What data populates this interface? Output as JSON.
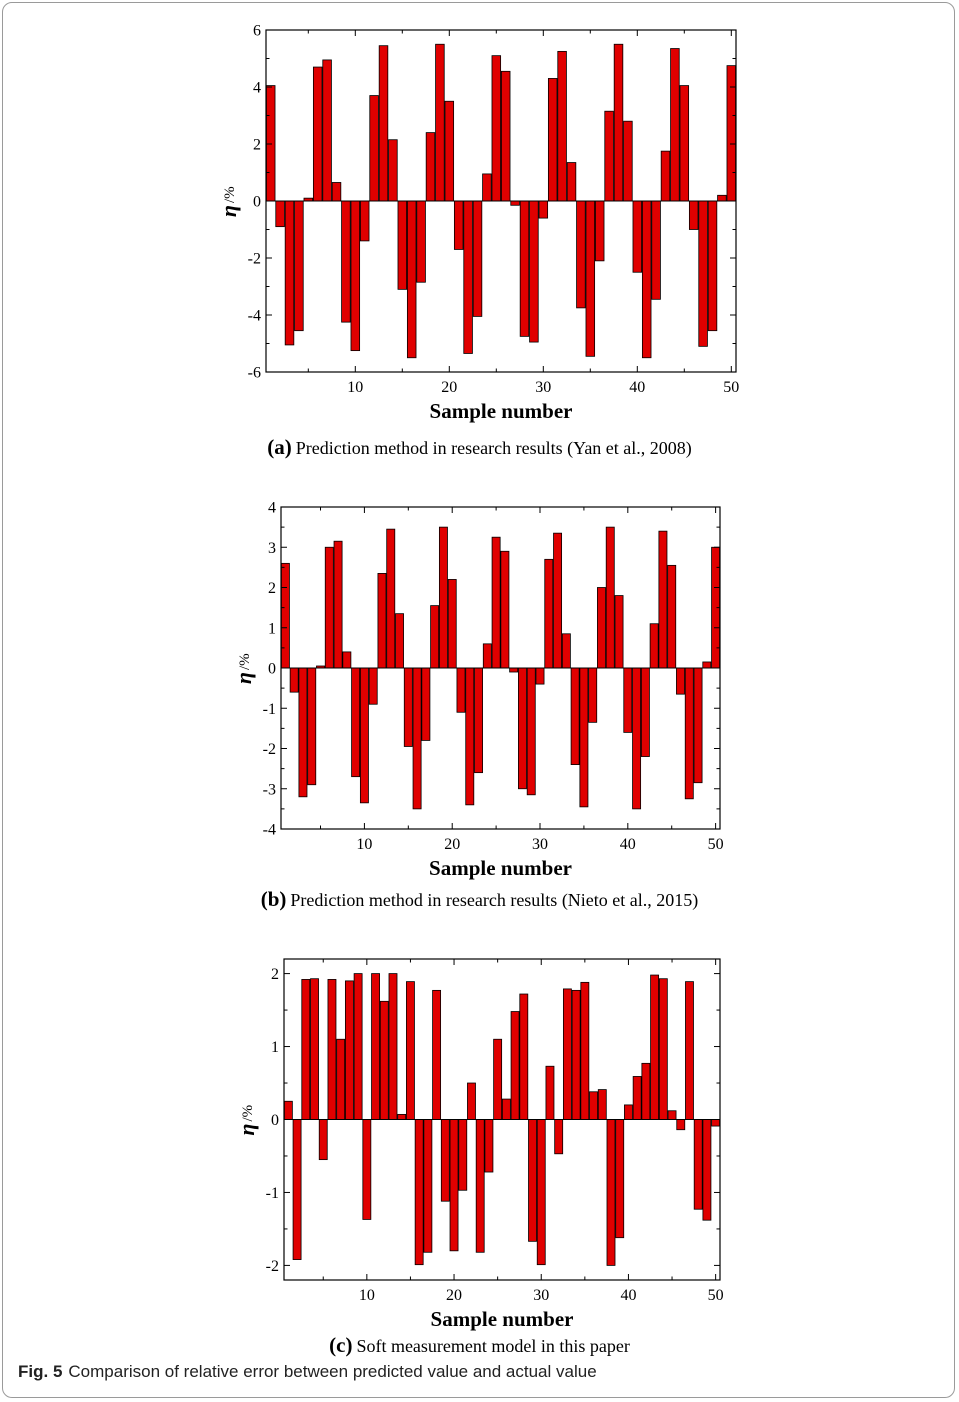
{
  "figure": {
    "label": "Fig. 5",
    "caption": "Comparison of relative error between predicted value and actual value"
  },
  "colors": {
    "bar": "#e00000",
    "stroke": "#000000"
  },
  "chart_data": [
    {
      "type": "bar",
      "panel_label": "(a)",
      "caption": "Prediction method in research results (Yan et al., 2008)",
      "xlabel": "Sample number",
      "ylabel": "η",
      "ylabel_unit": "/%",
      "xlim": [
        0.5,
        50.5
      ],
      "ylim": [
        -6,
        6
      ],
      "xticks": [
        10,
        20,
        30,
        40,
        50
      ],
      "yticks": [
        -6,
        -4,
        -2,
        0,
        2,
        4,
        6
      ],
      "ytick_labels": [
        "-6",
        "-4",
        "-2",
        "0",
        "2",
        "4",
        "6"
      ],
      "x": [
        1,
        2,
        3,
        4,
        5,
        6,
        7,
        8,
        9,
        10,
        11,
        12,
        13,
        14,
        15,
        16,
        17,
        18,
        19,
        20,
        21,
        22,
        23,
        24,
        25,
        26,
        27,
        28,
        29,
        30,
        31,
        32,
        33,
        34,
        35,
        36,
        37,
        38,
        39,
        40,
        41,
        42,
        43,
        44,
        45,
        46,
        47,
        48,
        49,
        50
      ],
      "values": [
        4.05,
        -0.9,
        -5.05,
        -4.55,
        0.1,
        4.7,
        4.95,
        0.65,
        -4.25,
        -5.25,
        -1.4,
        3.7,
        5.45,
        2.15,
        -3.1,
        -5.5,
        -2.85,
        2.4,
        5.5,
        3.5,
        -1.7,
        -5.35,
        -4.05,
        0.95,
        5.1,
        4.55,
        -0.15,
        -4.75,
        -4.95,
        -0.6,
        4.3,
        5.25,
        1.35,
        -3.75,
        -5.45,
        -2.1,
        3.15,
        5.5,
        2.8,
        -2.5,
        -5.5,
        -3.45,
        1.75,
        5.35,
        4.05,
        -1.0,
        -5.1,
        -4.55,
        0.2,
        4.75
      ]
    },
    {
      "type": "bar",
      "panel_label": "(b)",
      "caption": "Prediction method in research results (Nieto et al., 2015)",
      "xlabel": "Sample number",
      "ylabel": "η",
      "ylabel_unit": "/%",
      "xlim": [
        0.5,
        50.5
      ],
      "ylim": [
        -4,
        4
      ],
      "xticks": [
        10,
        20,
        30,
        40,
        50
      ],
      "yticks": [
        -4,
        -3,
        -2,
        -1,
        0,
        1,
        2,
        3,
        4
      ],
      "ytick_labels": [
        "-4",
        "-3",
        "-2",
        "-1",
        "0",
        "1",
        "2",
        "3",
        "4"
      ],
      "x": [
        1,
        2,
        3,
        4,
        5,
        6,
        7,
        8,
        9,
        10,
        11,
        12,
        13,
        14,
        15,
        16,
        17,
        18,
        19,
        20,
        21,
        22,
        23,
        24,
        25,
        26,
        27,
        28,
        29,
        30,
        31,
        32,
        33,
        34,
        35,
        36,
        37,
        38,
        39,
        40,
        41,
        42,
        43,
        44,
        45,
        46,
        47,
        48,
        49,
        50
      ],
      "values": [
        2.6,
        -0.6,
        -3.2,
        -2.9,
        0.05,
        3.0,
        3.15,
        0.4,
        -2.7,
        -3.35,
        -0.9,
        2.35,
        3.45,
        1.35,
        -1.95,
        -3.5,
        -1.8,
        1.55,
        3.5,
        2.2,
        -1.1,
        -3.4,
        -2.6,
        0.6,
        3.25,
        2.9,
        -0.1,
        -3.0,
        -3.15,
        -0.4,
        2.7,
        3.35,
        0.85,
        -2.4,
        -3.45,
        -1.35,
        2.0,
        3.5,
        1.8,
        -1.6,
        -3.5,
        -2.2,
        1.1,
        3.4,
        2.55,
        -0.65,
        -3.25,
        -2.85,
        0.15,
        3.0
      ]
    },
    {
      "type": "bar",
      "panel_label": "(c)",
      "caption": "Soft measurement model in this paper",
      "xlabel": "Sample number",
      "ylabel": "η",
      "ylabel_unit": "/%",
      "xlim": [
        0.5,
        50.5
      ],
      "ylim": [
        -2.2,
        2.2
      ],
      "xticks": [
        10,
        20,
        30,
        40,
        50
      ],
      "yticks": [
        -2,
        -1,
        0,
        1,
        2
      ],
      "ytick_labels": [
        "-2",
        "-1",
        "0",
        "1",
        "2"
      ],
      "x": [
        1,
        2,
        3,
        4,
        5,
        6,
        7,
        8,
        9,
        10,
        11,
        12,
        13,
        14,
        15,
        16,
        17,
        18,
        19,
        20,
        21,
        22,
        23,
        24,
        25,
        26,
        27,
        28,
        29,
        30,
        31,
        32,
        33,
        34,
        35,
        36,
        37,
        38,
        39,
        40,
        41,
        42,
        43,
        44,
        45,
        46,
        47,
        48,
        49,
        50
      ],
      "values": [
        0.25,
        -1.92,
        1.92,
        1.93,
        -0.55,
        1.92,
        1.1,
        1.9,
        2.0,
        -1.37,
        2.0,
        1.62,
        2.0,
        0.07,
        1.89,
        -1.99,
        -1.82,
        1.77,
        -1.12,
        -1.8,
        -0.97,
        0.5,
        -1.82,
        -0.72,
        1.1,
        0.28,
        1.48,
        1.72,
        -1.67,
        -1.99,
        0.73,
        -0.47,
        1.79,
        1.77,
        1.88,
        0.38,
        0.41,
        -2.0,
        -1.62,
        0.2,
        0.59,
        0.77,
        1.98,
        1.93,
        0.12,
        -0.14,
        1.89,
        -1.23,
        -1.38,
        -0.09
      ]
    }
  ]
}
